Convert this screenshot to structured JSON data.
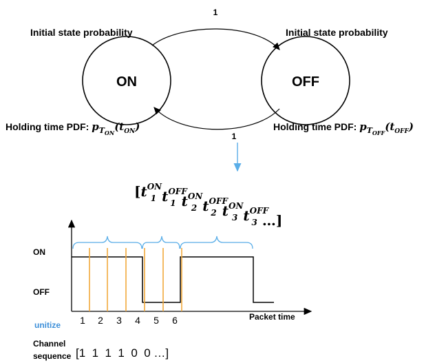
{
  "states": {
    "on": {
      "label": "ON",
      "initial_label": "Initial state probability",
      "holding_label": "Holding time PDF: ",
      "holding_sub": "T",
      "holding_subsub": "ON",
      "holding_arg": "ON"
    },
    "off": {
      "label": "OFF",
      "initial_label": "Initial state probability",
      "holding_label": "Holding time PDF: ",
      "holding_sub": "T",
      "holding_subsub": "OFF",
      "holding_arg": "OFF"
    }
  },
  "transitions": {
    "on_to_off": "1",
    "off_to_on": "1"
  },
  "colors": {
    "arrow": "#5aaee8",
    "brace": "#5aaee8",
    "ticks": "#f2a93b",
    "unitize": "#3d8fd9",
    "line": "#000000"
  },
  "sequence": {
    "open": "[",
    "items": [
      {
        "base": "t",
        "sub": "1",
        "sup": "ON"
      },
      {
        "base": "t",
        "sub": "1",
        "sup": "OFF"
      },
      {
        "base": "t",
        "sub": "2",
        "sup": "ON"
      },
      {
        "base": "t",
        "sub": "2",
        "sup": "OFF"
      },
      {
        "base": "t",
        "sub": "3",
        "sup": "ON"
      },
      {
        "base": "t",
        "sub": "3",
        "sup": "OFF"
      }
    ],
    "close": " …]"
  },
  "timing": {
    "on_label": "ON",
    "off_label": "OFF",
    "x_label": "Packet time",
    "slots": [
      "1",
      "2",
      "3",
      "4",
      "5",
      "6"
    ],
    "unitize_label": "unitize"
  },
  "channel": {
    "label_line1": "Channel",
    "label_line2": "sequence",
    "values": "[1  1  1  1  0  0 …]"
  }
}
